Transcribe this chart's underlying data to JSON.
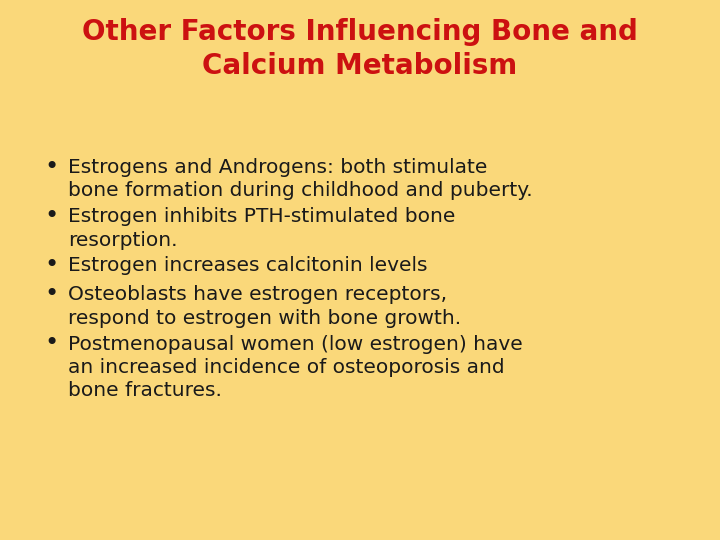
{
  "title_line1": "Other Factors Influencing Bone and",
  "title_line2": "Calcium Metabolism",
  "title_color": "#CC1111",
  "background_color": "#FAD87A",
  "text_color": "#1a1a1a",
  "bullet_points": [
    "Estrogens and Androgens: both stimulate\nbone formation during childhood and puberty.",
    "Estrogen inhibits PTH-stimulated bone\nresorption.",
    "Estrogen increases calcitonin levels",
    "Osteoblasts have estrogen receptors,\nrespond to estrogen with bone growth.",
    "Postmenopausal women (low estrogen) have\nan increased incidence of osteoporosis and\nbone fractures."
  ],
  "title_fontsize": 20,
  "body_fontsize": 14.5,
  "fig_width": 7.2,
  "fig_height": 5.4,
  "dpi": 100
}
